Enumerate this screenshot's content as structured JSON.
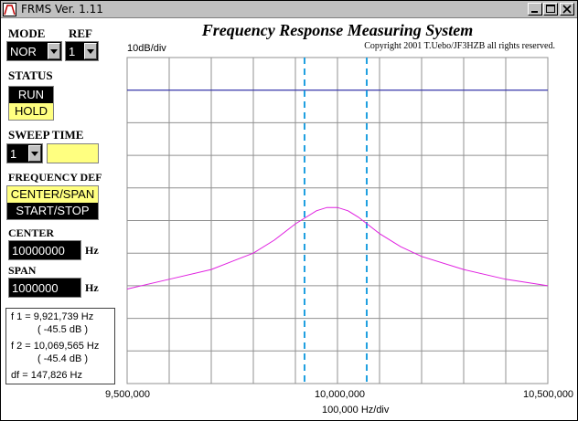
{
  "window": {
    "title": "FRMS  Ver. 1.11"
  },
  "header": {
    "title": "Frequency Response Measuring System",
    "copyright": "Copyright 2001 T.Uebo/JF3HZB all rights reserved.",
    "scale": "10dB/div"
  },
  "controls": {
    "mode_label": "MODE",
    "mode_value": "NOR",
    "ref_label": "REF",
    "ref_value": "1",
    "status_label": "STATUS",
    "status_options": [
      "RUN",
      "HOLD"
    ],
    "status_selected": "HOLD",
    "sweep_label": "SWEEP TIME",
    "sweep_value": "1",
    "freqdef_label": "FREQUENCY DEF",
    "freqdef_options": [
      "CENTER/SPAN",
      "START/STOP"
    ],
    "freqdef_selected": "CENTER/SPAN",
    "center_label": "CENTER",
    "center_value": "10000000",
    "center_unit": "Hz",
    "span_label": "SPAN",
    "span_value": "1000000",
    "span_unit": "Hz"
  },
  "readout": {
    "f1": "f 1 = 9,921,739 Hz",
    "f1_db": "( -45.5 dB )",
    "f2": "f 2 = 10,069,565 Hz",
    "f2_db": "( -45.4 dB )",
    "df": "df = 147,826 Hz"
  },
  "chart_data": {
    "type": "line",
    "x_ticks": [
      "9,500,000",
      "10,000,000",
      "10,500,000"
    ],
    "xlabel": "100,000 Hz/div",
    "x_range": [
      9500000,
      10500000
    ],
    "x_divisions": 10,
    "y_divisions": 10,
    "y_range_db": [
      -100,
      0
    ],
    "grid": true,
    "colors": {
      "response": "#e020e0",
      "reference": "#2020b0",
      "markers": "#20a0e0",
      "grid": "#909090"
    },
    "reference_level_db": -10,
    "markers_hz": [
      9921739,
      10069565
    ],
    "series": [
      {
        "x": [
          9500000,
          9600000,
          9700000,
          9800000,
          9850000,
          9900000,
          9950000,
          9975000,
          10000000,
          10025000,
          10050000,
          10100000,
          10150000,
          10200000,
          10300000,
          10400000,
          10500000
        ],
        "y": [
          -71,
          -68,
          -65,
          -60,
          -56,
          -51,
          -47,
          -46,
          -46,
          -47,
          -49,
          -54,
          -58,
          -61,
          -65,
          -68,
          -70
        ]
      }
    ]
  }
}
